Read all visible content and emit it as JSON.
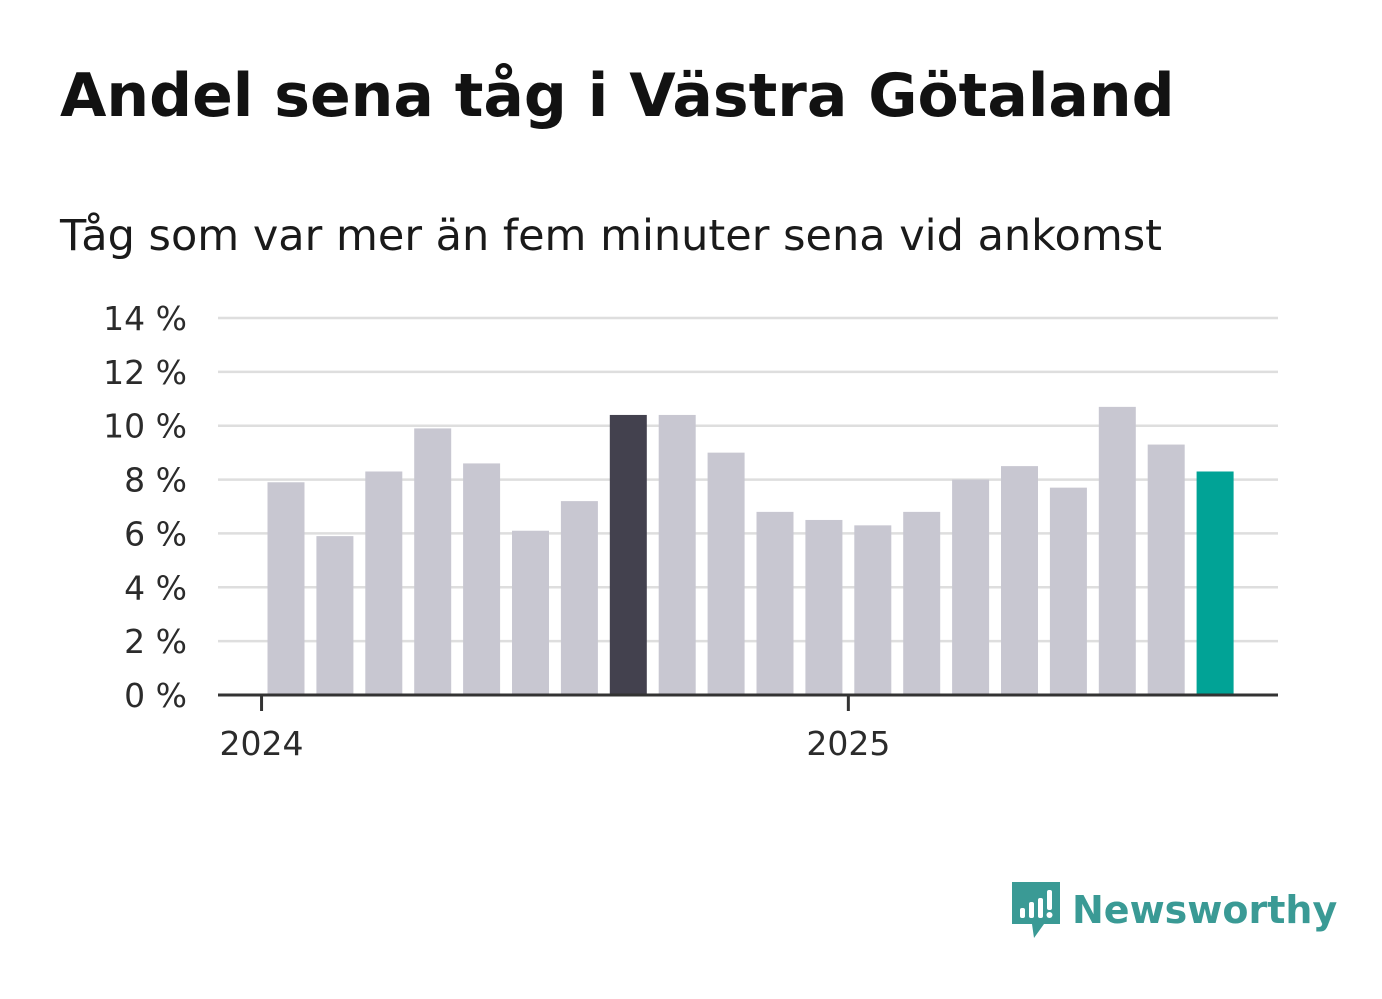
{
  "brand": {
    "name": "Newsworthy",
    "color": "#3a9a95"
  },
  "chart_data": {
    "type": "bar",
    "title": "Andel sena tåg i Västra Götaland",
    "subtitle": "Tåg som var mer än fem minuter sena vid ankomst",
    "xlabel": "",
    "ylabel": "",
    "ylim": [
      0,
      14
    ],
    "y_ticks": [
      {
        "value": 0,
        "label": "0 %"
      },
      {
        "value": 2,
        "label": "2 %"
      },
      {
        "value": 4,
        "label": "4 %"
      },
      {
        "value": 6,
        "label": "6 %"
      },
      {
        "value": 8,
        "label": "8 %"
      },
      {
        "value": 10,
        "label": "10 %"
      },
      {
        "value": 12,
        "label": "12 %"
      },
      {
        "value": 14,
        "label": "14 %"
      }
    ],
    "x_ticks": [
      {
        "index": -0.5,
        "label": "2024"
      },
      {
        "index": 11.5,
        "label": "2025"
      }
    ],
    "grid": true,
    "colors": {
      "default": "#c8c7d1",
      "highlight": "#43414e",
      "latest": "#01a396",
      "grid": "#dedede",
      "axis": "#333333"
    },
    "series": [
      {
        "name": "Andel sena tåg",
        "values": [
          7.9,
          5.9,
          8.3,
          9.9,
          8.6,
          6.1,
          7.2,
          10.4,
          10.4,
          9.0,
          6.8,
          6.5,
          6.3,
          6.8,
          8.0,
          8.5,
          7.7,
          10.7,
          9.3,
          8.3
        ],
        "bar_styles": [
          "default",
          "default",
          "default",
          "default",
          "default",
          "default",
          "default",
          "highlight",
          "default",
          "default",
          "default",
          "default",
          "default",
          "default",
          "default",
          "default",
          "default",
          "default",
          "default",
          "latest"
        ]
      }
    ]
  }
}
